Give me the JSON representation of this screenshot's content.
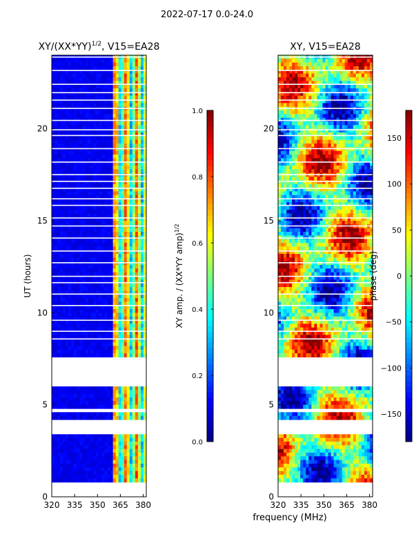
{
  "figure": {
    "suptitle": "2022-07-17 0.0-24.0",
    "shared_xlabel": "frequency (MHz)",
    "colormap": "jet",
    "colors": [
      "#00007f",
      "#0000ff",
      "#007fff",
      "#00ffff",
      "#7fff7f",
      "#ffff00",
      "#ff7f00",
      "#ff0000",
      "#7f0000"
    ]
  },
  "chart_data": [
    {
      "type": "heatmap",
      "title_main": "XY/(XX*YY)",
      "title_sup": "1/2",
      "title_tail": ", V15=EA28",
      "ylabel": "UT (hours)",
      "xlim": [
        320,
        382
      ],
      "ylim": [
        0,
        24
      ],
      "xticks": [
        320,
        335,
        350,
        365,
        380
      ],
      "yticks": [
        0,
        5,
        10,
        15,
        20
      ],
      "value_kind": "amplitude",
      "band_start_mhz": 360,
      "blank_ut_ranges": [
        [
          0.0,
          0.85
        ],
        [
          3.3,
          4.1
        ],
        [
          4.6,
          4.8
        ],
        [
          6.0,
          7.6
        ]
      ],
      "colorbar": {
        "label": "XY amp. / (XX*YY amp)",
        "label_sup": "1/2",
        "range": [
          0.0,
          1.0
        ],
        "ticks": [
          "0.0",
          "0.2",
          "0.4",
          "0.6",
          "0.8",
          "1.0"
        ]
      }
    },
    {
      "type": "heatmap",
      "title_main": "XY, V15=EA28",
      "ylabel": "",
      "xlim": [
        320,
        382
      ],
      "ylim": [
        0,
        24
      ],
      "xticks": [
        320,
        335,
        350,
        365,
        380
      ],
      "yticks": [
        0,
        5,
        10,
        15,
        20
      ],
      "value_kind": "phase",
      "blank_ut_ranges": [
        [
          0.0,
          0.85
        ],
        [
          3.3,
          4.1
        ],
        [
          4.6,
          4.8
        ],
        [
          6.0,
          7.6
        ]
      ],
      "colorbar": {
        "label": "phase (deg)",
        "range": [
          -180,
          180
        ],
        "ticks": [
          "−150",
          "−100",
          "−50",
          "0",
          "50",
          "100",
          "150"
        ]
      }
    }
  ]
}
